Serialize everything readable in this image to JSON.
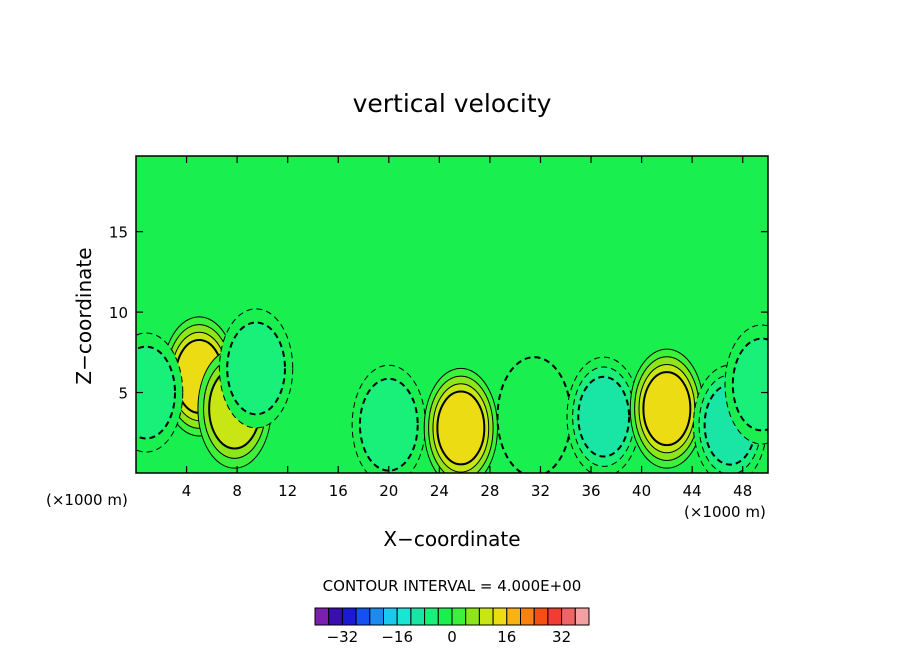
{
  "chart_data": {
    "type": "heatmap",
    "title": "vertical velocity",
    "xlabel": "X−coordinate",
    "ylabel": "Z−coordinate",
    "x_unit_label_left": "(×1000 m)",
    "x_unit_label_right": "(×1000 m)",
    "xlim": [
      0,
      50
    ],
    "ylim": [
      0,
      19.7
    ],
    "x_ticks": [
      4,
      8,
      12,
      16,
      20,
      24,
      28,
      32,
      36,
      40,
      44,
      48
    ],
    "y_ticks": [
      5,
      10,
      15
    ],
    "contour_interval_text": "CONTOUR INTERVAL = 4.000E+00",
    "contour_zero_label": "0.00",
    "colorbar": {
      "levels": [
        -36,
        -32,
        -28,
        -24,
        -20,
        -16,
        -12,
        -8,
        -4,
        0,
        4,
        8,
        12,
        16,
        20,
        24,
        28,
        32,
        36
      ],
      "tick_values": [
        -32,
        -16,
        0,
        16,
        32
      ],
      "tick_labels": [
        "−32",
        "−16",
        "0",
        "16",
        "32"
      ],
      "colors": [
        "#7a1fb0",
        "#3a0fb0",
        "#1a1ad6",
        "#1550f0",
        "#1a8cf0",
        "#1ac8f0",
        "#19e6d2",
        "#19e6a5",
        "#19f07a",
        "#19f050",
        "#3cf03c",
        "#8ce619",
        "#c8e614",
        "#ebdc14",
        "#f5b414",
        "#f58214",
        "#f55014",
        "#f03c32",
        "#f06464",
        "#f5a0a0"
      ]
    },
    "background_color": "#19f050",
    "features": [
      {
        "label": "updraft near x=5",
        "x": 5,
        "z": 6,
        "value": 14
      },
      {
        "label": "updraft near x=8",
        "x": 7.8,
        "z": 4,
        "value": 12
      },
      {
        "label": "downdraft near x=9",
        "x": 9.5,
        "z": 6.5,
        "value": -6
      },
      {
        "label": "downdraft near x=1",
        "x": 0.8,
        "z": 5,
        "value": -8
      },
      {
        "label": "downdraft near x=20",
        "x": 20,
        "z": 3,
        "value": -8
      },
      {
        "label": "updraft near x=26",
        "x": 25.7,
        "z": 2.8,
        "value": 16
      },
      {
        "label": "downdraft near x=31",
        "x": 31.5,
        "z": 3.5,
        "value": -4
      },
      {
        "label": "downdraft near x=37",
        "x": 37,
        "z": 3.5,
        "value": -12
      },
      {
        "label": "updraft near x=42",
        "x": 42,
        "z": 4,
        "value": 16
      },
      {
        "label": "downdraft near x=47",
        "x": 47,
        "z": 3,
        "value": -12
      },
      {
        "label": "downdraft near x=49.5",
        "x": 49.5,
        "z": 5.5,
        "value": -8
      }
    ],
    "grid": false,
    "legend": "bottom-center colorbar"
  }
}
